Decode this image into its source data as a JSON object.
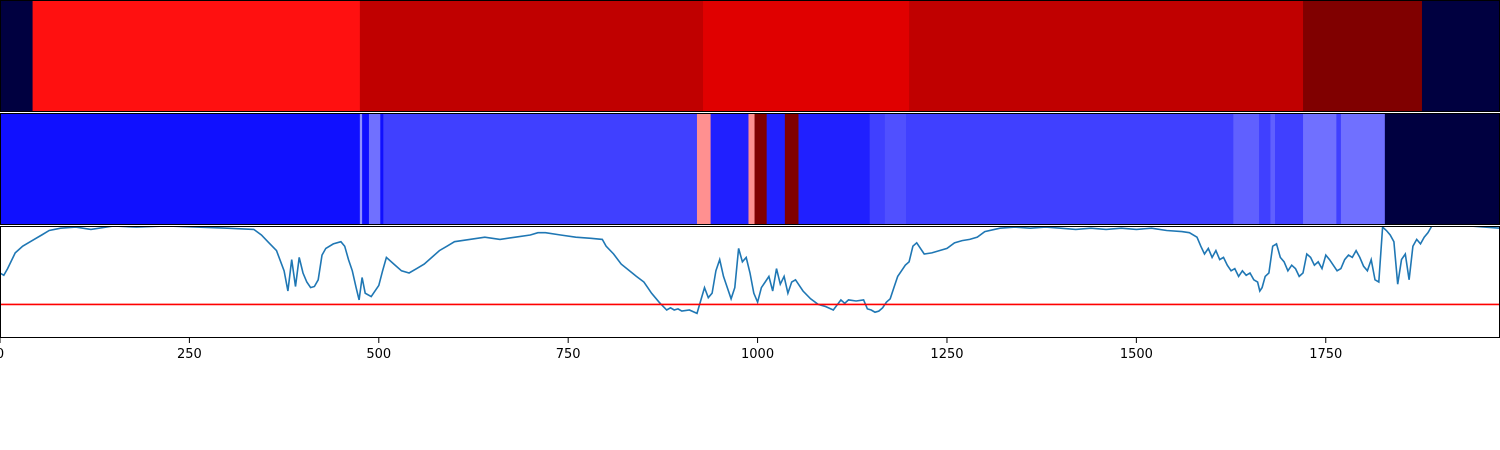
{
  "chart_data": {
    "type": "heatmap",
    "x_range": [
      0,
      1980
    ],
    "x_ticks": [
      0,
      250,
      500,
      750,
      1000,
      1250,
      1500,
      1750
    ],
    "x_tick_labels": [
      "0",
      "250",
      "500",
      "750",
      "1000",
      "1250",
      "1500",
      "1750"
    ],
    "grid": false,
    "legend": "none",
    "tracks": [
      {
        "kind": "segments",
        "segments": [
          {
            "start": 0,
            "end": 43,
            "color": "#000040"
          },
          {
            "start": 43,
            "end": 475,
            "color": "#ff1010"
          },
          {
            "start": 475,
            "end": 928,
            "color": "#c00000"
          },
          {
            "start": 928,
            "end": 1200,
            "color": "#e00000"
          },
          {
            "start": 1200,
            "end": 1720,
            "color": "#c00000"
          },
          {
            "start": 1720,
            "end": 1877,
            "color": "#800000"
          },
          {
            "start": 1877,
            "end": 1980,
            "color": "#000040"
          }
        ]
      },
      {
        "kind": "segments",
        "segments": [
          {
            "start": 0,
            "end": 475,
            "color": "#1010ff"
          },
          {
            "start": 475,
            "end": 478,
            "color": "#9090ff"
          },
          {
            "start": 478,
            "end": 487,
            "color": "#1010ff"
          },
          {
            "start": 487,
            "end": 502,
            "color": "#7070ff"
          },
          {
            "start": 502,
            "end": 506,
            "color": "#1010ff"
          },
          {
            "start": 506,
            "end": 920,
            "color": "#4040ff"
          },
          {
            "start": 920,
            "end": 938,
            "color": "#ff9090"
          },
          {
            "start": 938,
            "end": 988,
            "color": "#2020ff"
          },
          {
            "start": 988,
            "end": 996,
            "color": "#ff9090"
          },
          {
            "start": 996,
            "end": 1012,
            "color": "#800000"
          },
          {
            "start": 1012,
            "end": 1036,
            "color": "#2020ff"
          },
          {
            "start": 1036,
            "end": 1054,
            "color": "#800000"
          },
          {
            "start": 1054,
            "end": 1148,
            "color": "#2020ff"
          },
          {
            "start": 1148,
            "end": 1168,
            "color": "#4040ff"
          },
          {
            "start": 1168,
            "end": 1196,
            "color": "#5050ff"
          },
          {
            "start": 1196,
            "end": 1628,
            "color": "#4040ff"
          },
          {
            "start": 1628,
            "end": 1662,
            "color": "#6060ff"
          },
          {
            "start": 1662,
            "end": 1677,
            "color": "#4040ff"
          },
          {
            "start": 1677,
            "end": 1683,
            "color": "#6060ff"
          },
          {
            "start": 1683,
            "end": 1720,
            "color": "#4040ff"
          },
          {
            "start": 1720,
            "end": 1764,
            "color": "#7070ff"
          },
          {
            "start": 1764,
            "end": 1770,
            "color": "#4040ff"
          },
          {
            "start": 1770,
            "end": 1828,
            "color": "#7070ff"
          },
          {
            "start": 1828,
            "end": 1980,
            "color": "#000040"
          }
        ]
      },
      {
        "kind": "line",
        "y_range": [
          0,
          1
        ],
        "line_color": "#1f77b4",
        "threshold": 0.3,
        "threshold_color": "#ff0000",
        "x": [
          0,
          5,
          10,
          20,
          30,
          45,
          55,
          65,
          80,
          100,
          120,
          150,
          180,
          220,
          260,
          300,
          335,
          345,
          355,
          365,
          375,
          380,
          385,
          390,
          395,
          400,
          405,
          410,
          415,
          420,
          425,
          430,
          440,
          450,
          455,
          460,
          465,
          470,
          474,
          478,
          482,
          490,
          500,
          505,
          510,
          520,
          530,
          540,
          550,
          560,
          570,
          580,
          590,
          600,
          620,
          640,
          660,
          680,
          700,
          710,
          720,
          740,
          760,
          780,
          795,
          800,
          810,
          820,
          840,
          850,
          855,
          860,
          870,
          880,
          885,
          890,
          895,
          900,
          910,
          920,
          930,
          935,
          940,
          945,
          950,
          955,
          960,
          965,
          970,
          975,
          980,
          985,
          990,
          995,
          1000,
          1005,
          1010,
          1015,
          1020,
          1025,
          1030,
          1035,
          1040,
          1045,
          1050,
          1060,
          1070,
          1080,
          1090,
          1100,
          1110,
          1115,
          1120,
          1130,
          1140,
          1145,
          1150,
          1155,
          1160,
          1165,
          1170,
          1175,
          1180,
          1185,
          1190,
          1195,
          1200,
          1205,
          1210,
          1220,
          1230,
          1240,
          1250,
          1260,
          1270,
          1280,
          1290,
          1300,
          1320,
          1340,
          1360,
          1380,
          1400,
          1420,
          1440,
          1460,
          1480,
          1500,
          1520,
          1540,
          1560,
          1570,
          1580,
          1585,
          1590,
          1595,
          1600,
          1605,
          1610,
          1615,
          1620,
          1625,
          1630,
          1635,
          1640,
          1645,
          1650,
          1655,
          1660,
          1663,
          1666,
          1670,
          1675,
          1680,
          1685,
          1690,
          1695,
          1700,
          1705,
          1710,
          1715,
          1720,
          1725,
          1730,
          1735,
          1740,
          1745,
          1750,
          1755,
          1760,
          1765,
          1770,
          1775,
          1780,
          1785,
          1790,
          1795,
          1800,
          1805,
          1810,
          1815,
          1820,
          1825,
          1830,
          1835,
          1840,
          1845,
          1850,
          1855,
          1860,
          1865,
          1870,
          1875,
          1880,
          1885,
          1890,
          1900,
          1920,
          1940,
          1960,
          1980
        ],
        "y": [
          0.58,
          0.56,
          0.62,
          0.76,
          0.82,
          0.88,
          0.92,
          0.96,
          0.98,
          0.99,
          0.97,
          1.0,
          0.99,
          1.0,
          0.99,
          0.98,
          0.97,
          0.92,
          0.85,
          0.78,
          0.6,
          0.42,
          0.7,
          0.46,
          0.72,
          0.58,
          0.5,
          0.45,
          0.46,
          0.52,
          0.74,
          0.8,
          0.84,
          0.86,
          0.82,
          0.7,
          0.6,
          0.45,
          0.34,
          0.54,
          0.4,
          0.37,
          0.47,
          0.6,
          0.72,
          0.66,
          0.6,
          0.58,
          0.62,
          0.66,
          0.72,
          0.78,
          0.82,
          0.86,
          0.88,
          0.9,
          0.88,
          0.9,
          0.92,
          0.94,
          0.94,
          0.92,
          0.9,
          0.89,
          0.88,
          0.82,
          0.75,
          0.66,
          0.55,
          0.5,
          0.45,
          0.4,
          0.32,
          0.25,
          0.27,
          0.25,
          0.26,
          0.24,
          0.25,
          0.22,
          0.45,
          0.36,
          0.4,
          0.6,
          0.7,
          0.55,
          0.45,
          0.35,
          0.45,
          0.8,
          0.68,
          0.72,
          0.58,
          0.4,
          0.32,
          0.45,
          0.5,
          0.55,
          0.42,
          0.62,
          0.48,
          0.55,
          0.4,
          0.5,
          0.52,
          0.42,
          0.35,
          0.3,
          0.28,
          0.25,
          0.34,
          0.31,
          0.34,
          0.33,
          0.34,
          0.26,
          0.25,
          0.23,
          0.24,
          0.27,
          0.32,
          0.35,
          0.45,
          0.55,
          0.6,
          0.65,
          0.68,
          0.82,
          0.85,
          0.75,
          0.76,
          0.78,
          0.8,
          0.85,
          0.87,
          0.88,
          0.9,
          0.95,
          0.98,
          0.99,
          0.98,
          0.99,
          0.98,
          0.97,
          0.98,
          0.97,
          0.98,
          0.97,
          0.98,
          0.96,
          0.95,
          0.94,
          0.9,
          0.82,
          0.75,
          0.8,
          0.72,
          0.78,
          0.7,
          0.72,
          0.65,
          0.6,
          0.62,
          0.55,
          0.6,
          0.56,
          0.58,
          0.52,
          0.5,
          0.42,
          0.45,
          0.55,
          0.58,
          0.82,
          0.84,
          0.72,
          0.68,
          0.6,
          0.65,
          0.62,
          0.55,
          0.58,
          0.75,
          0.72,
          0.65,
          0.68,
          0.62,
          0.74,
          0.7,
          0.65,
          0.6,
          0.62,
          0.7,
          0.74,
          0.72,
          0.78,
          0.72,
          0.64,
          0.6,
          0.7,
          0.52,
          0.5,
          0.99,
          0.96,
          0.92,
          0.86,
          0.48,
          0.7,
          0.75,
          0.52,
          0.82,
          0.88,
          0.84,
          0.9,
          0.94,
          1.0,
          1.0,
          1.0,
          1.0,
          0.99,
          0.98
        ]
      }
    ]
  }
}
